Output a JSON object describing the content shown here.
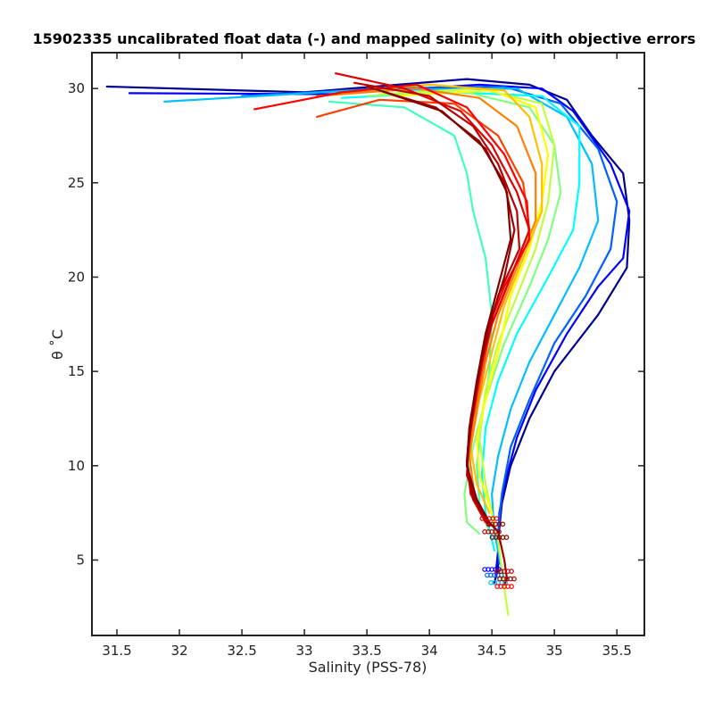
{
  "chart_data": {
    "type": "line",
    "title": "15902335 uncalibrated float data (-) and mapped salinity (o) with objective errors",
    "xlabel": "Salinity (PSS-78)",
    "ylabel": "θ ˚C",
    "xlim": [
      31.3,
      35.72
    ],
    "ylim": [
      1,
      31.9
    ],
    "xticks": [
      "31.5",
      "32",
      "32.5",
      "33",
      "33.5",
      "34",
      "34.5",
      "35",
      "35.5"
    ],
    "yticks": [
      "5",
      "10",
      "15",
      "20",
      "25",
      "30"
    ],
    "grid": false,
    "legend": "none",
    "series": [
      {
        "color": "#00008f",
        "values": [
          [
            31.42,
            30.1
          ],
          [
            33.0,
            29.8
          ],
          [
            34.3,
            30.5
          ],
          [
            34.8,
            30.2
          ],
          [
            35.1,
            29.4
          ],
          [
            35.3,
            27.5
          ],
          [
            35.55,
            25.5
          ],
          [
            35.6,
            23.0
          ],
          [
            35.58,
            20.5
          ],
          [
            35.35,
            18.0
          ],
          [
            35.0,
            15.0
          ],
          [
            34.8,
            12.5
          ],
          [
            34.65,
            10.0
          ],
          [
            34.58,
            8.0
          ],
          [
            34.55,
            6.0
          ],
          [
            34.55,
            4.5
          ],
          [
            34.52,
            3.8
          ]
        ]
      },
      {
        "color": "#0000ff",
        "values": [
          [
            31.6,
            29.75
          ],
          [
            33.2,
            29.7
          ],
          [
            34.4,
            30.2
          ],
          [
            34.9,
            30.0
          ],
          [
            35.15,
            28.8
          ],
          [
            35.45,
            26.0
          ],
          [
            35.6,
            23.5
          ],
          [
            35.55,
            21.0
          ],
          [
            35.35,
            19.5
          ],
          [
            35.1,
            17.0
          ],
          [
            34.85,
            14.0
          ],
          [
            34.7,
            11.5
          ],
          [
            34.6,
            9.0
          ],
          [
            34.56,
            7.5
          ],
          [
            34.55,
            5.5
          ],
          [
            34.53,
            4.2
          ]
        ]
      },
      {
        "color": "#005fff",
        "values": [
          [
            32.5,
            29.6
          ],
          [
            33.6,
            30.0
          ],
          [
            34.6,
            30.1
          ],
          [
            35.05,
            29.2
          ],
          [
            35.35,
            26.8
          ],
          [
            35.5,
            24.0
          ],
          [
            35.45,
            21.5
          ],
          [
            35.25,
            19.0
          ],
          [
            35.0,
            16.5
          ],
          [
            34.8,
            13.5
          ],
          [
            34.65,
            11.0
          ],
          [
            34.58,
            8.5
          ],
          [
            34.55,
            6.5
          ],
          [
            34.56,
            4.8
          ]
        ]
      },
      {
        "color": "#00bfff",
        "values": [
          [
            31.88,
            29.3
          ],
          [
            33.4,
            29.9
          ],
          [
            34.7,
            30.0
          ],
          [
            35.1,
            28.5
          ],
          [
            35.3,
            26.0
          ],
          [
            35.35,
            23.0
          ],
          [
            35.2,
            20.5
          ],
          [
            35.0,
            18.0
          ],
          [
            34.8,
            15.5
          ],
          [
            34.65,
            13.0
          ],
          [
            34.55,
            10.5
          ],
          [
            34.5,
            8.5
          ],
          [
            34.52,
            6.5
          ],
          [
            34.58,
            4.5
          ],
          [
            34.6,
            3.5
          ]
        ]
      },
      {
        "color": "#00ffff",
        "values": [
          [
            33.3,
            29.5
          ],
          [
            34.2,
            29.8
          ],
          [
            34.9,
            29.6
          ],
          [
            35.2,
            28.0
          ],
          [
            35.2,
            25.0
          ],
          [
            35.15,
            22.5
          ],
          [
            34.95,
            20.0
          ],
          [
            34.7,
            17.0
          ],
          [
            34.55,
            14.5
          ],
          [
            34.45,
            12.0
          ],
          [
            34.42,
            9.5
          ],
          [
            34.45,
            7.5
          ],
          [
            34.52,
            5.5
          ]
        ]
      },
      {
        "color": "#40ffbf",
        "values": [
          [
            33.2,
            29.3
          ],
          [
            33.8,
            29.0
          ],
          [
            34.2,
            27.5
          ],
          [
            34.3,
            25.5
          ],
          [
            34.35,
            23.5
          ],
          [
            34.45,
            21.0
          ],
          [
            34.5,
            18.0
          ],
          [
            34.48,
            15.0
          ],
          [
            34.42,
            12.5
          ],
          [
            34.38,
            10.0
          ],
          [
            34.4,
            8.0
          ],
          [
            34.48,
            6.5
          ]
        ]
      },
      {
        "color": "#80ff80",
        "values": [
          [
            33.5,
            29.6
          ],
          [
            34.3,
            29.8
          ],
          [
            34.8,
            29.0
          ],
          [
            35.0,
            27.0
          ],
          [
            35.05,
            24.5
          ],
          [
            34.95,
            22.0
          ],
          [
            34.8,
            19.5
          ],
          [
            34.6,
            16.5
          ],
          [
            34.45,
            13.5
          ],
          [
            34.35,
            11.0
          ],
          [
            34.28,
            8.5
          ],
          [
            34.3,
            7.0
          ],
          [
            34.4,
            6.4
          ]
        ]
      },
      {
        "color": "#bfff40",
        "values": [
          [
            33.6,
            29.7
          ],
          [
            34.4,
            30.0
          ],
          [
            34.9,
            29.2
          ],
          [
            35.0,
            27.0
          ],
          [
            34.95,
            24.0
          ],
          [
            34.85,
            21.5
          ],
          [
            34.7,
            19.0
          ],
          [
            34.55,
            16.5
          ],
          [
            34.45,
            14.0
          ],
          [
            34.4,
            11.5
          ],
          [
            34.45,
            9.0
          ],
          [
            34.55,
            6.0
          ],
          [
            34.6,
            3.5
          ],
          [
            34.63,
            2.1
          ]
        ]
      },
      {
        "color": "#ffff00",
        "values": [
          [
            33.7,
            29.6
          ],
          [
            34.5,
            29.9
          ],
          [
            34.85,
            29.0
          ],
          [
            34.95,
            26.5
          ],
          [
            34.9,
            24.0
          ],
          [
            34.8,
            21.5
          ],
          [
            34.65,
            19.0
          ],
          [
            34.55,
            16.0
          ],
          [
            34.45,
            13.5
          ],
          [
            34.38,
            11.5
          ],
          [
            34.4,
            9.5
          ],
          [
            34.5,
            7.5
          ]
        ]
      },
      {
        "color": "#ffbf00",
        "values": [
          [
            33.3,
            29.8
          ],
          [
            34.0,
            30.2
          ],
          [
            34.6,
            29.9
          ],
          [
            34.8,
            28.5
          ],
          [
            34.9,
            26.0
          ],
          [
            34.9,
            23.5
          ],
          [
            34.75,
            21.0
          ],
          [
            34.6,
            18.5
          ],
          [
            34.5,
            16.0
          ],
          [
            34.4,
            13.5
          ],
          [
            34.33,
            11.0
          ],
          [
            34.38,
            9.0
          ],
          [
            34.48,
            7.5
          ]
        ]
      },
      {
        "color": "#ff8000",
        "values": [
          [
            33.1,
            29.6
          ],
          [
            33.9,
            30.0
          ],
          [
            34.4,
            29.5
          ],
          [
            34.7,
            28.0
          ],
          [
            34.85,
            25.5
          ],
          [
            34.85,
            23.0
          ],
          [
            34.7,
            20.5
          ],
          [
            34.55,
            18.0
          ],
          [
            34.45,
            15.5
          ],
          [
            34.38,
            13.0
          ],
          [
            34.32,
            10.5
          ],
          [
            34.36,
            8.5
          ],
          [
            34.45,
            7.2
          ]
        ]
      },
      {
        "color": "#ff4000",
        "values": [
          [
            33.1,
            28.5
          ],
          [
            33.6,
            29.4
          ],
          [
            34.2,
            29.2
          ],
          [
            34.55,
            27.5
          ],
          [
            34.75,
            25.0
          ],
          [
            34.8,
            22.5
          ],
          [
            34.65,
            20.0
          ],
          [
            34.5,
            17.5
          ],
          [
            34.42,
            15.0
          ],
          [
            34.35,
            12.5
          ],
          [
            34.3,
            10.2
          ],
          [
            34.35,
            8.4
          ],
          [
            34.45,
            7.0
          ]
        ]
      },
      {
        "color": "#ff0000",
        "values": [
          [
            32.6,
            28.9
          ],
          [
            33.3,
            29.8
          ],
          [
            33.9,
            30.2
          ],
          [
            34.3,
            29.0
          ],
          [
            34.6,
            26.5
          ],
          [
            34.78,
            24.0
          ],
          [
            34.8,
            22.0
          ],
          [
            34.6,
            19.5
          ],
          [
            34.45,
            17.0
          ],
          [
            34.38,
            14.5
          ],
          [
            34.32,
            12.0
          ],
          [
            34.3,
            10.0
          ],
          [
            34.35,
            8.2
          ],
          [
            34.45,
            7.0
          ]
        ]
      },
      {
        "color": "#df0000",
        "values": [
          [
            33.25,
            30.8
          ],
          [
            33.8,
            30.0
          ],
          [
            34.25,
            28.8
          ],
          [
            34.5,
            27.0
          ],
          [
            34.7,
            24.5
          ],
          [
            34.8,
            22.5
          ],
          [
            34.65,
            20.0
          ],
          [
            34.5,
            17.5
          ],
          [
            34.4,
            15.0
          ],
          [
            34.33,
            12.5
          ],
          [
            34.3,
            10.3
          ],
          [
            34.33,
            8.5
          ],
          [
            34.45,
            7.0
          ]
        ]
      },
      {
        "color": "#bf0000",
        "values": [
          [
            33.4,
            30.3
          ],
          [
            34.0,
            29.6
          ],
          [
            34.35,
            28.0
          ],
          [
            34.55,
            26.0
          ],
          [
            34.7,
            23.5
          ],
          [
            34.72,
            21.5
          ],
          [
            34.55,
            19.0
          ],
          [
            34.45,
            16.5
          ],
          [
            34.38,
            14.0
          ],
          [
            34.32,
            11.5
          ],
          [
            34.3,
            9.5
          ],
          [
            34.38,
            8.0
          ],
          [
            34.48,
            6.8
          ]
        ]
      },
      {
        "color": "#9f0000",
        "values": [
          [
            33.5,
            30.1
          ],
          [
            34.05,
            29.0
          ],
          [
            34.4,
            27.2
          ],
          [
            34.6,
            25.0
          ],
          [
            34.68,
            22.5
          ],
          [
            34.6,
            20.0
          ],
          [
            34.48,
            17.5
          ],
          [
            34.4,
            15.0
          ],
          [
            34.34,
            12.5
          ],
          [
            34.3,
            10.2
          ],
          [
            34.35,
            8.3
          ],
          [
            34.45,
            7.2
          ],
          [
            34.55,
            6.5
          ],
          [
            34.6,
            5.0
          ],
          [
            34.62,
            4.0
          ],
          [
            34.6,
            3.7
          ]
        ]
      },
      {
        "color": "#800000",
        "values": [
          [
            33.6,
            29.9
          ],
          [
            34.1,
            28.8
          ],
          [
            34.45,
            26.8
          ],
          [
            34.62,
            24.5
          ],
          [
            34.65,
            22.0
          ],
          [
            34.55,
            19.5
          ],
          [
            34.45,
            17.0
          ],
          [
            34.38,
            14.5
          ],
          [
            34.32,
            12.0
          ],
          [
            34.3,
            10.0
          ],
          [
            34.38,
            8.2
          ],
          [
            34.48,
            7.0
          ],
          [
            34.55,
            6.5
          ]
        ]
      }
    ]
  }
}
